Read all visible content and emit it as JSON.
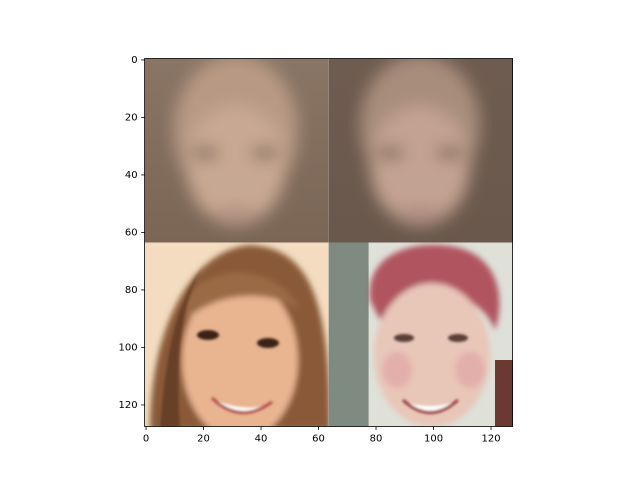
{
  "chart_data": {
    "type": "image",
    "xlim": [
      -0.5,
      127.5
    ],
    "ylim": [
      127.5,
      -0.5
    ],
    "xticks": [
      0,
      20,
      40,
      60,
      80,
      100,
      120
    ],
    "yticks": [
      0,
      20,
      40,
      60,
      80,
      100,
      120
    ]
  }
}
